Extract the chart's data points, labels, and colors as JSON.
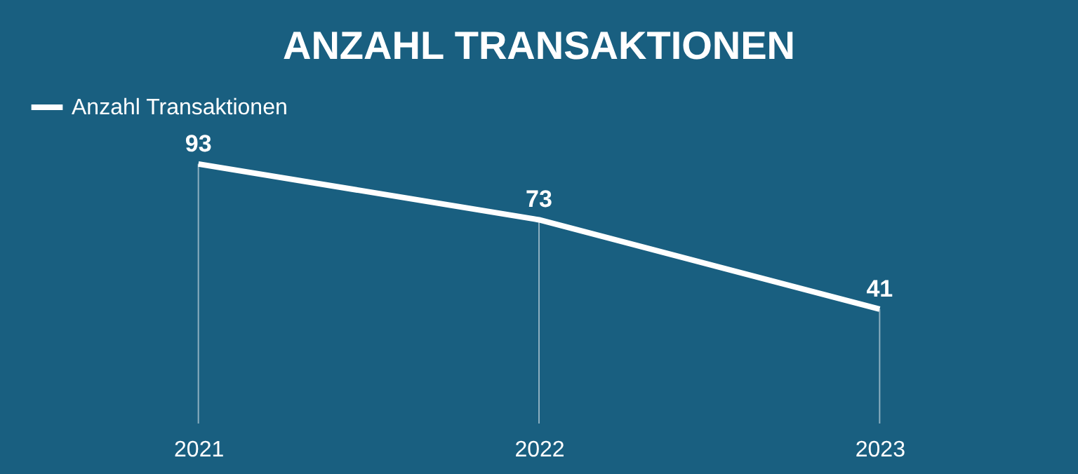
{
  "chart_data": {
    "type": "line",
    "title": "ANZAHL TRANSAKTIONEN",
    "categories": [
      "2021",
      "2022",
      "2023"
    ],
    "series": [
      {
        "name": "Anzahl Transaktionen",
        "color": "#ffffff",
        "values": [
          93,
          73,
          41
        ]
      }
    ],
    "tick_labels": "x",
    "data_labels": true,
    "legend": "top",
    "grid": "x",
    "marker": "none",
    "line_style": "solid"
  }
}
